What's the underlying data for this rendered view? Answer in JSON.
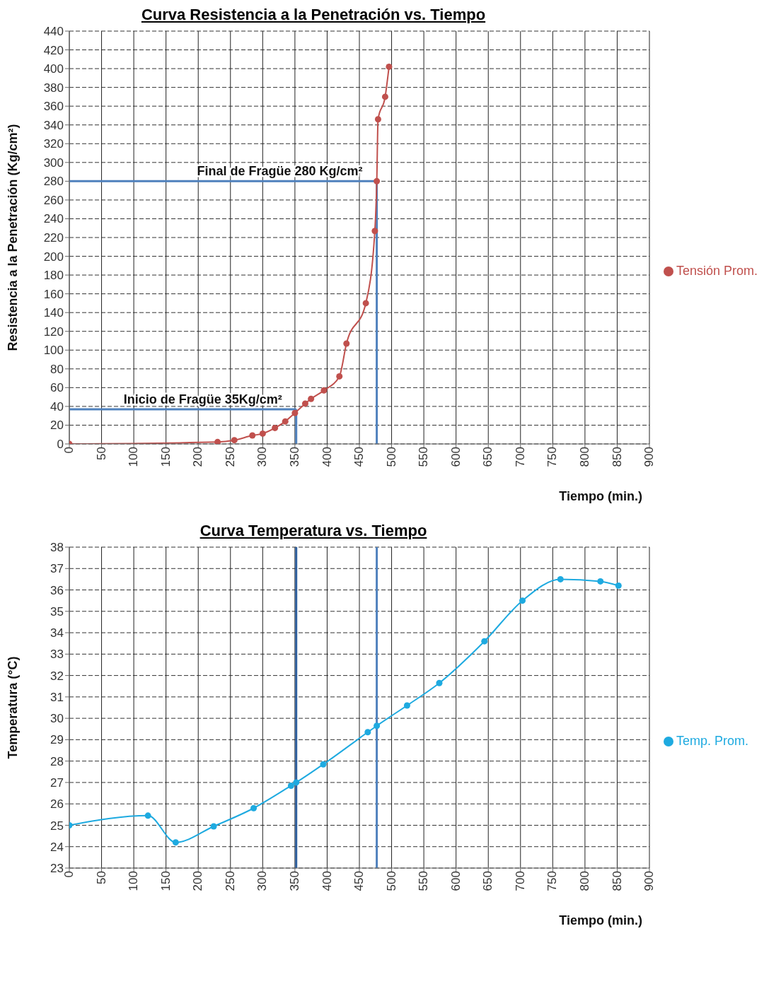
{
  "chart_data": [
    {
      "type": "line",
      "title": "Curva Resistencia a la Penetración vs. Tiempo",
      "xlabel": "Tiempo (min.)",
      "ylabel": "Resistencia a la Penetración (Kg/cm²)",
      "xlim": [
        0,
        900
      ],
      "xticks": [
        0,
        50,
        100,
        150,
        200,
        250,
        300,
        350,
        400,
        450,
        500,
        550,
        600,
        650,
        700,
        750,
        800,
        850,
        900
      ],
      "ylim": [
        0,
        440
      ],
      "yticks": [
        0,
        20,
        40,
        60,
        80,
        100,
        120,
        140,
        160,
        180,
        200,
        220,
        240,
        260,
        280,
        300,
        320,
        340,
        360,
        380,
        400,
        420,
        440
      ],
      "grid": true,
      "legend": "right",
      "marker": "circle",
      "series": [
        {
          "name": "Tensión Prom.",
          "color": "#c0504d",
          "x": [
            0,
            230,
            256,
            281,
            284,
            300,
            319,
            335,
            350,
            366,
            375,
            395,
            419,
            430,
            460,
            474,
            477,
            479,
            490,
            496
          ],
          "values": [
            0,
            2,
            4,
            null,
            9,
            11,
            17,
            24,
            33,
            43,
            48,
            57,
            72,
            107,
            150,
            227,
            280,
            346,
            370,
            402
          ]
        }
      ],
      "ref_lines": [
        {
          "axis": "y",
          "value": 37,
          "color": "#4f81bd"
        },
        {
          "axis": "y",
          "value": 280,
          "color": "#4f81bd"
        },
        {
          "axis": "x",
          "value": 352,
          "color": "#4f81bd"
        },
        {
          "axis": "x",
          "value": 477,
          "color": "#4f81bd"
        }
      ],
      "annotations": [
        {
          "text": "Inicio de Fragüe 35Kg/cm²",
          "x": 352,
          "y": 37
        },
        {
          "text": "Final de Fragüe 280 Kg/cm²",
          "x": 477,
          "y": 280
        }
      ]
    },
    {
      "type": "line",
      "title": "Curva Temperatura vs. Tiempo",
      "xlabel": "Tiempo (min.)",
      "ylabel": "Temperatura (°C)",
      "xlim": [
        0,
        900
      ],
      "xticks": [
        0,
        50,
        100,
        150,
        200,
        250,
        300,
        350,
        400,
        450,
        500,
        550,
        600,
        650,
        700,
        750,
        800,
        850,
        900
      ],
      "ylim": [
        23,
        38
      ],
      "yticks": [
        23,
        24,
        25,
        26,
        27,
        28,
        29,
        30,
        31,
        32,
        33,
        34,
        35,
        36,
        37,
        38
      ],
      "grid": true,
      "legend": "right",
      "marker": "circle",
      "series": [
        {
          "name": "Temp. Prom.",
          "color": "#1eaae0",
          "x": [
            0,
            122,
            165,
            224,
            286,
            344,
            352,
            394,
            463,
            477,
            524,
            574,
            644,
            703,
            762,
            824,
            852
          ],
          "values": [
            25.0,
            25.45,
            24.2,
            24.95,
            25.8,
            26.85,
            27.0,
            27.85,
            29.35,
            29.65,
            30.6,
            31.65,
            33.6,
            35.5,
            36.5,
            36.4,
            36.2
          ]
        }
      ],
      "ref_lines": [
        {
          "axis": "x",
          "value": 352,
          "color": "#2e5f9e"
        },
        {
          "axis": "x",
          "value": 477,
          "color": "#4f81bd"
        }
      ]
    }
  ]
}
